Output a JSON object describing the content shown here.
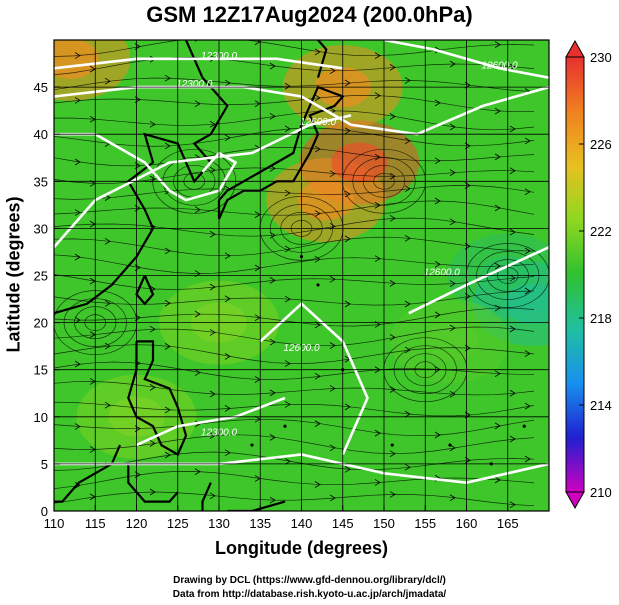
{
  "title": "GSM 12Z17Aug2024 (200.0hPa)",
  "xlabel": "Longitude (degrees)",
  "ylabel": "Latitude  (degrees)",
  "credit_line1": "Drawing by DCL (https://www.gfd-dennou.org/library/dcl/)",
  "credit_line2": "Data from http://database.rish.kyoto-u.ac.jp/arch/jmadata/",
  "chart_data": {
    "type": "heatmap",
    "title": "GSM 12Z17Aug2024 (200.0hPa)",
    "xlabel": "Longitude (degrees)",
    "ylabel": "Latitude  (degrees)",
    "xlim": [
      110,
      170
    ],
    "ylim": [
      0,
      50
    ],
    "x_ticks": [
      110,
      115,
      120,
      125,
      130,
      135,
      140,
      145,
      150,
      155,
      160,
      165
    ],
    "y_ticks": [
      0,
      5,
      10,
      15,
      20,
      25,
      30,
      35,
      40,
      45
    ],
    "grid": true,
    "colorbar": {
      "ticks": [
        210,
        214,
        218,
        222,
        226,
        230
      ],
      "range": [
        210,
        230
      ],
      "colors": [
        "#d000c0",
        "#2020d0",
        "#1890f0",
        "#20c0a0",
        "#30c030",
        "#8ed820",
        "#e8c020",
        "#f08020",
        "#e83030"
      ]
    },
    "temperature_field": [
      {
        "lon": 147,
        "lat": 37,
        "value": 229
      },
      {
        "lon": 143,
        "lat": 33,
        "value": 227
      },
      {
        "lon": 145,
        "lat": 45,
        "value": 227
      },
      {
        "lon": 112,
        "lat": 48,
        "value": 227
      },
      {
        "lon": 165,
        "lat": 25,
        "value": 219
      },
      {
        "lon": 168,
        "lat": 22,
        "value": 218
      },
      {
        "lon": 158,
        "lat": 18,
        "value": 221
      },
      {
        "lon": 130,
        "lat": 20,
        "value": 222
      },
      {
        "lon": 120,
        "lat": 10,
        "value": 222
      }
    ],
    "contours": [
      {
        "label": "12300.0",
        "lon": 130,
        "lat": 48
      },
      {
        "label": "12300.0",
        "lon": 127,
        "lat": 45
      },
      {
        "label": "12600.0",
        "lon": 164,
        "lat": 47
      },
      {
        "label": "12600.0",
        "lon": 142,
        "lat": 41
      },
      {
        "label": "12600.0",
        "lon": 157,
        "lat": 25
      },
      {
        "label": "12600.0",
        "lon": 140,
        "lat": 17
      },
      {
        "label": "12300.0",
        "lon": 130,
        "lat": 8
      }
    ]
  }
}
